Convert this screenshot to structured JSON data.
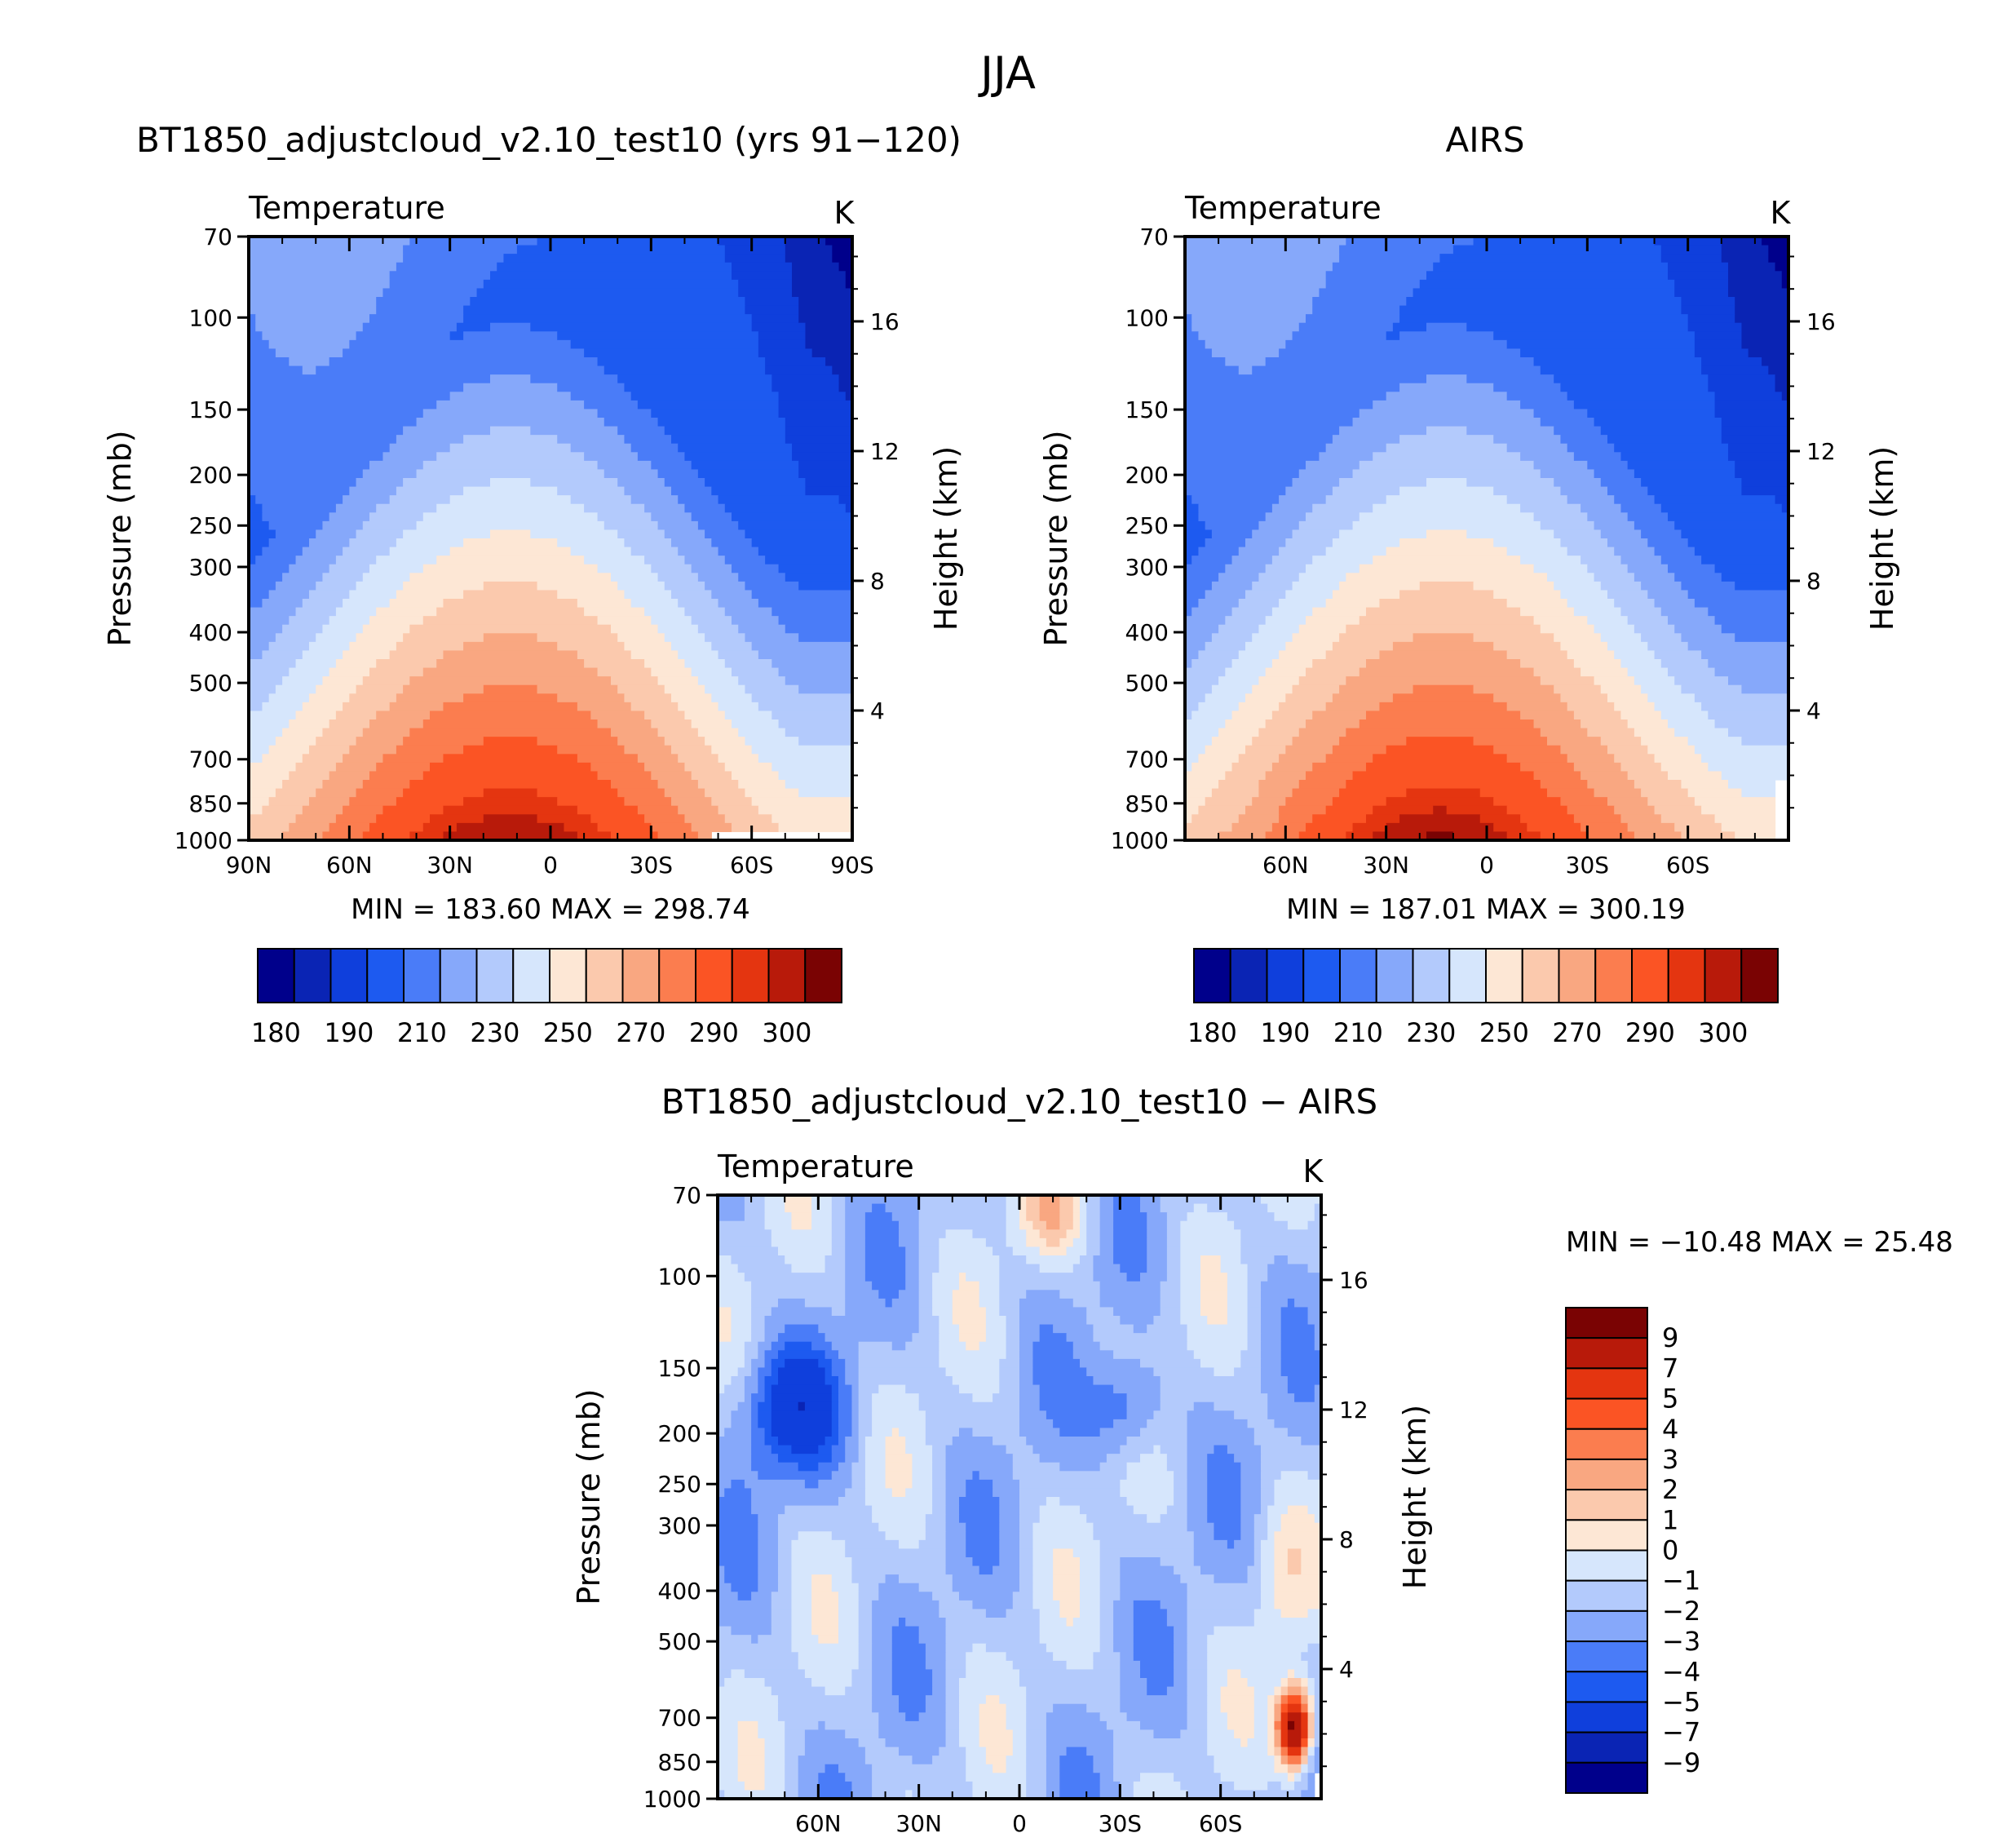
{
  "title": "JJA",
  "chart_data": [
    {
      "type": "contour",
      "panel_title": "BT1850_adjustcloud_v2.10_test10 (yrs 91−120)",
      "variable": "Temperature",
      "units": "K",
      "ylabel": "Pressure (mb)",
      "y2label": "Height (km)",
      "yticks": [
        70,
        100,
        150,
        200,
        250,
        300,
        400,
        500,
        700,
        850,
        1000
      ],
      "y2ticks": [
        16,
        12,
        8,
        4
      ],
      "xticks": [
        "90N",
        "60N",
        "30N",
        "0",
        "30S",
        "60S",
        "90S"
      ],
      "xlim": [
        90,
        -90
      ],
      "stats": "MIN = 183.60 MAX = 298.74",
      "min": 183.6,
      "max": 298.74,
      "levels": [
        180,
        185,
        190,
        200,
        210,
        220,
        230,
        240,
        250,
        260,
        270,
        280,
        290,
        295,
        300
      ],
      "colorbar_labels": [
        "180",
        "190",
        "210",
        "230",
        "250",
        "270",
        "290",
        "300"
      ]
    },
    {
      "type": "contour",
      "panel_title": "AIRS",
      "variable": "Temperature",
      "units": "K",
      "ylabel": "Pressure (mb)",
      "y2label": "Height (km)",
      "yticks": [
        70,
        100,
        150,
        200,
        250,
        300,
        400,
        500,
        700,
        850,
        1000
      ],
      "y2ticks": [
        16,
        12,
        8,
        4
      ],
      "xticks": [
        "60N",
        "30N",
        "0",
        "30S",
        "60S"
      ],
      "xlim": [
        90,
        -90
      ],
      "stats": "MIN = 187.01 MAX = 300.19",
      "min": 187.01,
      "max": 300.19,
      "levels": [
        180,
        185,
        190,
        200,
        210,
        220,
        230,
        240,
        250,
        260,
        270,
        280,
        290,
        295,
        300
      ],
      "colorbar_labels": [
        "180",
        "190",
        "210",
        "230",
        "250",
        "270",
        "290",
        "300"
      ]
    },
    {
      "type": "contour",
      "panel_title": "BT1850_adjustcloud_v2.10_test10 − AIRS",
      "variable": "Temperature",
      "units": "K",
      "ylabel": "Pressure (mb)",
      "y2label": "Height (km)",
      "yticks": [
        70,
        100,
        150,
        200,
        250,
        300,
        400,
        500,
        700,
        850,
        1000
      ],
      "y2ticks": [
        16,
        12,
        8,
        4
      ],
      "xticks": [
        "60N",
        "30N",
        "0",
        "30S",
        "60S"
      ],
      "xlim": [
        90,
        -90
      ],
      "stats": "MIN = −10.48 MAX = 25.48",
      "min": -10.48,
      "max": 25.48,
      "levels": [
        -9,
        -7,
        -5,
        -4,
        -3,
        -2,
        -1,
        0,
        1,
        2,
        3,
        4,
        5,
        7,
        9
      ],
      "colorbar_labels": [
        "9",
        "7",
        "5",
        "4",
        "3",
        "2",
        "1",
        "0",
        "−1",
        "−2",
        "−3",
        "−4",
        "−5",
        "−7",
        "−9"
      ]
    }
  ],
  "colors": {
    "seq": [
      "#00008b",
      "#0a24b4",
      "#0f3fdc",
      "#1d5af0",
      "#4a7cf8",
      "#86a8fa",
      "#b3cafc",
      "#d6e6fc",
      "#fde7d5",
      "#fbc9ad",
      "#f9a781",
      "#fb7d4f",
      "#fb5424",
      "#e43510",
      "#b81a0a",
      "#7a0303"
    ],
    "diff": [
      "#00008b",
      "#0a24b4",
      "#0f3fdc",
      "#1d5af0",
      "#4a7cf8",
      "#86a8fa",
      "#b3cafc",
      "#d6e6fc",
      "#fde7d5",
      "#fbc9ad",
      "#f9a781",
      "#fb7d4f",
      "#fb5424",
      "#e43510",
      "#b81a0a",
      "#7a0303"
    ]
  }
}
